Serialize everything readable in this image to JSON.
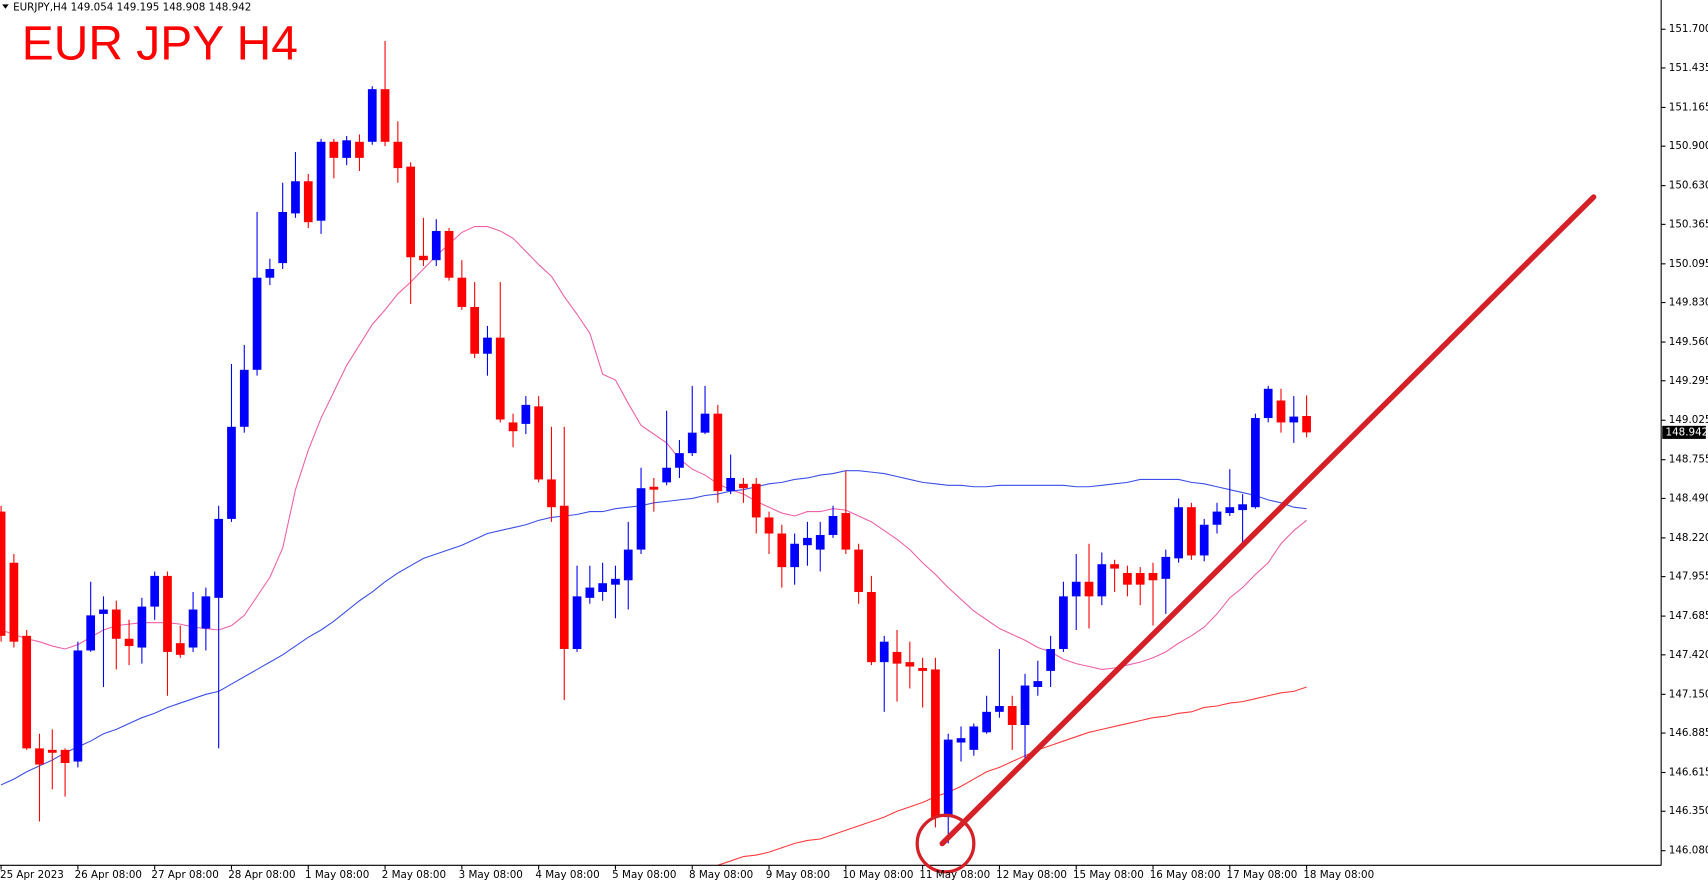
{
  "chart_data": {
    "type": "candlestick",
    "title": "EUR JPY H4",
    "header": "EURJPY,H4  149.054 149.195 148.908 148.942",
    "up_color": "#0000ff",
    "down_color": "#ff0000",
    "categories": [
      "25 Apr 2023",
      null,
      null,
      null,
      null,
      null,
      "26 Apr 08:00",
      null,
      null,
      null,
      null,
      null,
      "27 Apr 08:00",
      null,
      null,
      null,
      null,
      null,
      "28 Apr 08:00",
      null,
      null,
      null,
      null,
      null,
      "1 May 08:00",
      null,
      null,
      null,
      null,
      null,
      "2 May 08:00",
      null,
      null,
      null,
      null,
      null,
      "3 May 08:00",
      null,
      null,
      null,
      null,
      null,
      "4 May 08:00",
      null,
      null,
      null,
      null,
      null,
      "5 May 08:00",
      null,
      null,
      null,
      null,
      null,
      "8 May 08:00",
      null,
      null,
      null,
      null,
      null,
      "9 May 08:00",
      null,
      null,
      null,
      null,
      null,
      "10 May 08:00",
      null,
      null,
      null,
      null,
      null,
      "11 May 08:00",
      null,
      null,
      null,
      null,
      null,
      "12 May 08:00",
      null,
      null,
      null,
      null,
      null,
      "15 May 08:00",
      null,
      null,
      null,
      null,
      null,
      "16 May 08:00",
      null,
      null,
      null,
      null,
      null,
      "17 May 08:00",
      null,
      null,
      null,
      null,
      null,
      "18 May 08:00"
    ],
    "open": [
      148.4,
      148.05,
      147.55,
      146.78,
      146.77,
      146.77,
      146.69,
      147.45,
      147.7,
      147.73,
      147.53,
      147.47,
      147.75,
      147.96,
      147.5,
      147.47,
      147.6,
      147.81,
      148.35,
      148.98,
      149.37,
      150.0,
      150.1,
      150.44,
      150.66,
      150.39,
      150.93,
      150.82,
      150.93,
      150.93,
      151.29,
      150.93,
      150.76,
      150.15,
      150.12,
      150.32,
      150.0,
      149.8,
      149.48,
      149.59,
      149.01,
      149.0,
      149.12,
      148.62,
      148.44,
      147.46,
      147.81,
      147.85,
      147.9,
      147.93,
      148.14,
      148.57,
      148.6,
      148.7,
      148.8,
      148.94,
      149.07,
      148.54,
      148.59,
      148.59,
      148.36,
      148.25,
      148.02,
      148.17,
      148.14,
      148.24,
      148.39,
      148.14,
      147.85,
      147.37,
      147.44,
      147.37,
      147.33,
      147.32,
      146.31,
      146.82,
      146.77,
      146.89,
      147.03,
      147.07,
      146.94,
      147.2,
      147.31,
      147.46,
      147.82,
      147.92,
      147.82,
      148.04,
      147.98,
      147.98,
      147.98,
      147.94,
      148.08,
      148.43,
      148.1,
      148.31,
      148.39,
      148.41,
      148.43,
      149.04,
      149.16,
      149.01,
      149.054
    ],
    "high": [
      148.44,
      148.11,
      147.59,
      146.88,
      146.91,
      146.78,
      147.51,
      147.92,
      147.82,
      147.79,
      147.66,
      147.81,
      147.99,
      147.99,
      147.62,
      147.85,
      147.88,
      148.44,
      149.41,
      149.54,
      150.45,
      150.13,
      150.65,
      150.86,
      150.71,
      150.95,
      150.95,
      150.97,
      150.98,
      151.31,
      151.62,
      151.07,
      150.79,
      150.41,
      150.4,
      150.34,
      150.12,
      149.97,
      149.67,
      149.97,
      149.07,
      149.19,
      149.19,
      148.98,
      148.98,
      148.03,
      148.03,
      148.05,
      148.03,
      148.33,
      148.7,
      148.63,
      149.09,
      148.89,
      149.26,
      149.26,
      149.13,
      148.79,
      148.63,
      148.63,
      148.4,
      148.31,
      148.25,
      148.33,
      148.33,
      148.44,
      148.68,
      148.18,
      147.96,
      147.55,
      147.59,
      147.51,
      147.4,
      147.4,
      146.88,
      146.93,
      146.95,
      147.14,
      147.46,
      147.14,
      147.29,
      147.38,
      147.55,
      147.92,
      148.11,
      148.18,
      148.12,
      148.07,
      148.03,
      148.02,
      148.05,
      148.14,
      148.49,
      148.46,
      148.35,
      148.46,
      148.69,
      148.52,
      149.07,
      149.26,
      149.24,
      149.19,
      149.195
    ],
    "low": [
      147.51,
      147.47,
      146.77,
      146.28,
      146.5,
      146.45,
      146.65,
      147.44,
      147.2,
      147.32,
      147.35,
      147.36,
      147.66,
      147.14,
      147.4,
      147.44,
      147.45,
      146.78,
      148.33,
      148.94,
      149.33,
      149.95,
      150.06,
      150.41,
      150.34,
      150.3,
      150.68,
      150.77,
      150.73,
      150.91,
      150.9,
      150.65,
      149.82,
      150.08,
      150.08,
      149.98,
      149.78,
      149.45,
      149.33,
      149.01,
      148.84,
      148.93,
      148.6,
      148.33,
      147.11,
      147.44,
      147.77,
      147.79,
      147.67,
      147.73,
      148.11,
      148.4,
      148.58,
      148.63,
      148.78,
      148.93,
      148.46,
      148.52,
      148.46,
      148.25,
      148.11,
      147.88,
      147.9,
      148.03,
      147.99,
      148.22,
      148.11,
      147.77,
      147.35,
      147.03,
      147.1,
      147.19,
      147.06,
      146.24,
      146.13,
      146.69,
      146.73,
      146.88,
      146.99,
      146.77,
      146.69,
      147.14,
      147.2,
      147.44,
      147.59,
      147.6,
      147.76,
      147.85,
      147.82,
      147.76,
      147.62,
      147.7,
      148.05,
      148.07,
      148.06,
      148.25,
      148.37,
      148.18,
      148.42,
      149.01,
      148.94,
      148.87,
      148.908
    ],
    "close": [
      147.55,
      147.51,
      146.78,
      146.67,
      146.75,
      146.68,
      147.45,
      147.69,
      147.73,
      147.53,
      147.48,
      147.75,
      147.96,
      147.44,
      147.42,
      147.73,
      147.82,
      148.35,
      148.98,
      149.37,
      150.0,
      150.06,
      150.45,
      150.66,
      150.38,
      150.93,
      150.82,
      150.94,
      150.82,
      151.29,
      150.93,
      150.75,
      150.14,
      150.12,
      150.32,
      150.0,
      149.8,
      149.48,
      149.59,
      149.03,
      148.95,
      149.13,
      148.62,
      148.43,
      147.46,
      147.82,
      147.88,
      147.91,
      147.94,
      148.14,
      148.56,
      148.55,
      148.7,
      148.8,
      148.94,
      149.07,
      148.54,
      148.63,
      148.56,
      148.36,
      148.25,
      148.02,
      148.18,
      148.22,
      148.24,
      148.37,
      148.14,
      147.85,
      147.37,
      147.51,
      147.36,
      147.34,
      147.31,
      146.31,
      146.84,
      146.85,
      146.93,
      147.03,
      147.07,
      146.94,
      147.21,
      147.24,
      147.46,
      147.82,
      147.92,
      147.82,
      148.04,
      148.01,
      147.9,
      147.9,
      147.93,
      148.09,
      148.43,
      148.1,
      148.31,
      148.4,
      148.43,
      148.45,
      149.04,
      149.24,
      149.01,
      149.05,
      148.942
    ],
    "series": [
      {
        "color": "#f060a8",
        "values": [
          147.59,
          147.56,
          147.53,
          147.51,
          147.48,
          147.46,
          147.49,
          147.54,
          147.59,
          147.62,
          147.63,
          147.64,
          147.64,
          147.64,
          147.63,
          147.61,
          147.6,
          147.59,
          147.62,
          147.69,
          147.82,
          147.95,
          148.15,
          148.55,
          148.82,
          149.04,
          149.22,
          149.4,
          149.54,
          149.68,
          149.78,
          149.89,
          149.97,
          150.06,
          150.15,
          150.23,
          150.31,
          150.35,
          150.35,
          150.32,
          150.27,
          150.18,
          150.09,
          150.01,
          149.87,
          149.75,
          149.62,
          149.34,
          149.3,
          149.14,
          148.99,
          148.93,
          148.87,
          148.76,
          148.69,
          148.65,
          148.59,
          148.55,
          148.52,
          148.47,
          148.43,
          148.39,
          148.37,
          148.4,
          148.4,
          148.42,
          148.41,
          148.37,
          148.33,
          148.27,
          148.21,
          148.14,
          148.05,
          147.97,
          147.88,
          147.8,
          147.72,
          147.66,
          147.6,
          147.56,
          147.52,
          147.47,
          147.44,
          147.39,
          147.36,
          147.34,
          147.32,
          147.33,
          147.35,
          147.37,
          147.4,
          147.44,
          147.5,
          147.55,
          147.61,
          147.7,
          147.81,
          147.88,
          147.97,
          148.05,
          148.18,
          148.27,
          148.34
        ]
      },
      {
        "color": "#3a50e8",
        "values": [
          146.53,
          146.57,
          146.62,
          146.66,
          146.7,
          146.75,
          146.79,
          146.83,
          146.88,
          146.91,
          146.95,
          146.99,
          147.02,
          147.06,
          147.09,
          147.12,
          147.15,
          147.17,
          147.22,
          147.27,
          147.32,
          147.37,
          147.42,
          147.48,
          147.54,
          147.59,
          147.65,
          147.72,
          147.79,
          147.85,
          147.92,
          147.98,
          148.03,
          148.08,
          148.11,
          148.14,
          148.17,
          148.21,
          148.25,
          148.27,
          148.29,
          148.31,
          148.34,
          148.36,
          148.37,
          148.38,
          148.4,
          148.4,
          148.42,
          148.43,
          148.44,
          148.46,
          148.47,
          148.48,
          148.49,
          148.51,
          148.52,
          148.54,
          148.55,
          148.57,
          148.59,
          148.6,
          148.62,
          148.63,
          148.65,
          148.66,
          148.68,
          148.68,
          148.67,
          148.66,
          148.64,
          148.62,
          148.6,
          148.59,
          148.58,
          148.58,
          148.57,
          148.57,
          148.58,
          148.58,
          148.58,
          148.58,
          148.58,
          148.58,
          148.57,
          148.57,
          148.58,
          148.59,
          148.6,
          148.62,
          148.62,
          148.62,
          148.62,
          148.6,
          148.59,
          148.57,
          148.55,
          148.53,
          148.51,
          148.48,
          148.46,
          148.43,
          148.42
        ]
      },
      {
        "color": "#ff3a3a",
        "values": [
          null,
          null,
          null,
          null,
          null,
          null,
          null,
          null,
          null,
          null,
          null,
          null,
          null,
          null,
          null,
          null,
          null,
          null,
          null,
          null,
          null,
          null,
          null,
          null,
          null,
          null,
          null,
          null,
          null,
          null,
          null,
          null,
          null,
          null,
          null,
          null,
          null,
          null,
          null,
          null,
          null,
          null,
          null,
          null,
          null,
          null,
          null,
          null,
          null,
          null,
          null,
          null,
          null,
          null,
          null,
          null,
          145.98,
          146.01,
          146.04,
          146.05,
          146.07,
          146.1,
          146.13,
          146.15,
          146.16,
          146.19,
          146.22,
          146.25,
          146.28,
          146.31,
          146.35,
          146.38,
          146.41,
          146.45,
          146.48,
          146.52,
          146.57,
          146.62,
          146.65,
          146.69,
          146.73,
          146.77,
          146.8,
          146.83,
          146.86,
          146.89,
          146.91,
          146.93,
          146.95,
          146.97,
          146.99,
          147.0,
          147.02,
          147.03,
          147.06,
          147.07,
          147.09,
          147.1,
          147.12,
          147.14,
          147.16,
          147.17,
          147.2
        ]
      }
    ],
    "ylim": [
      145.98,
      151.9
    ],
    "yticks": [
      {
        "value": 151.7,
        "label": "151.700"
      },
      151.435,
      151.165,
      {
        "value": 150.9,
        "label": "150.900"
      },
      {
        "value": 150.63,
        "label": "150.630"
      },
      150.365,
      150.095,
      {
        "value": 149.83,
        "label": "149.830"
      },
      {
        "value": 149.56,
        "label": "149.560"
      },
      149.295,
      149.025,
      148.755,
      {
        "value": 148.49,
        "label": "148.490"
      },
      {
        "value": 148.22,
        "label": "148.220"
      },
      147.955,
      147.685,
      {
        "value": 147.42,
        "label": "147.420"
      },
      {
        "value": 147.15,
        "label": "147.150"
      },
      146.885,
      146.615,
      {
        "value": 146.35,
        "label": "146.350"
      },
      {
        "value": 146.08,
        "label": "146.080"
      }
    ],
    "grid": false
  }
}
